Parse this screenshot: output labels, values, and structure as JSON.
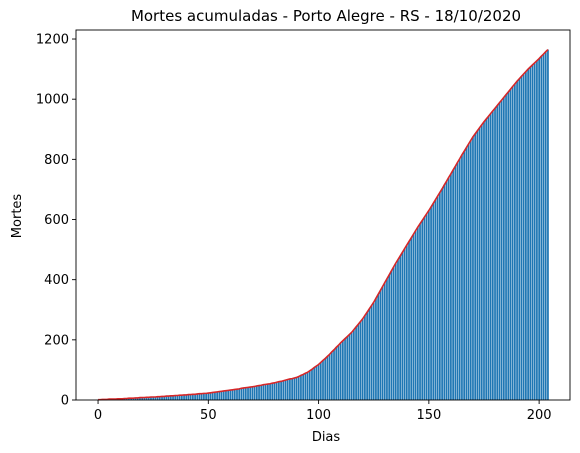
{
  "chart_data": {
    "type": "bar",
    "title": "Mortes acumuladas - Porto Alegre - RS - 18/10/2020",
    "xlabel": "Dias",
    "ylabel": "Mortes",
    "x_range": [
      0,
      204
    ],
    "xlim": [
      -10,
      214
    ],
    "ylim": [
      0,
      1230
    ],
    "x_ticks": [
      0,
      50,
      100,
      150,
      200
    ],
    "y_ticks": [
      0,
      200,
      400,
      600,
      800,
      1000,
      1200
    ],
    "grid": false,
    "bar_color": "#1f77b4",
    "line_color": "#d62728",
    "anchors": [
      [
        0,
        1
      ],
      [
        10,
        4
      ],
      [
        20,
        8
      ],
      [
        30,
        12
      ],
      [
        40,
        17
      ],
      [
        50,
        23
      ],
      [
        60,
        33
      ],
      [
        70,
        44
      ],
      [
        80,
        57
      ],
      [
        90,
        75
      ],
      [
        95,
        92
      ],
      [
        100,
        118
      ],
      [
        105,
        152
      ],
      [
        110,
        190
      ],
      [
        115,
        225
      ],
      [
        120,
        270
      ],
      [
        125,
        325
      ],
      [
        130,
        390
      ],
      [
        135,
        455
      ],
      [
        140,
        515
      ],
      [
        145,
        575
      ],
      [
        150,
        630
      ],
      [
        155,
        690
      ],
      [
        160,
        752
      ],
      [
        165,
        815
      ],
      [
        170,
        875
      ],
      [
        175,
        925
      ],
      [
        180,
        970
      ],
      [
        185,
        1015
      ],
      [
        190,
        1060
      ],
      [
        195,
        1100
      ],
      [
        200,
        1135
      ],
      [
        204,
        1165
      ]
    ]
  }
}
